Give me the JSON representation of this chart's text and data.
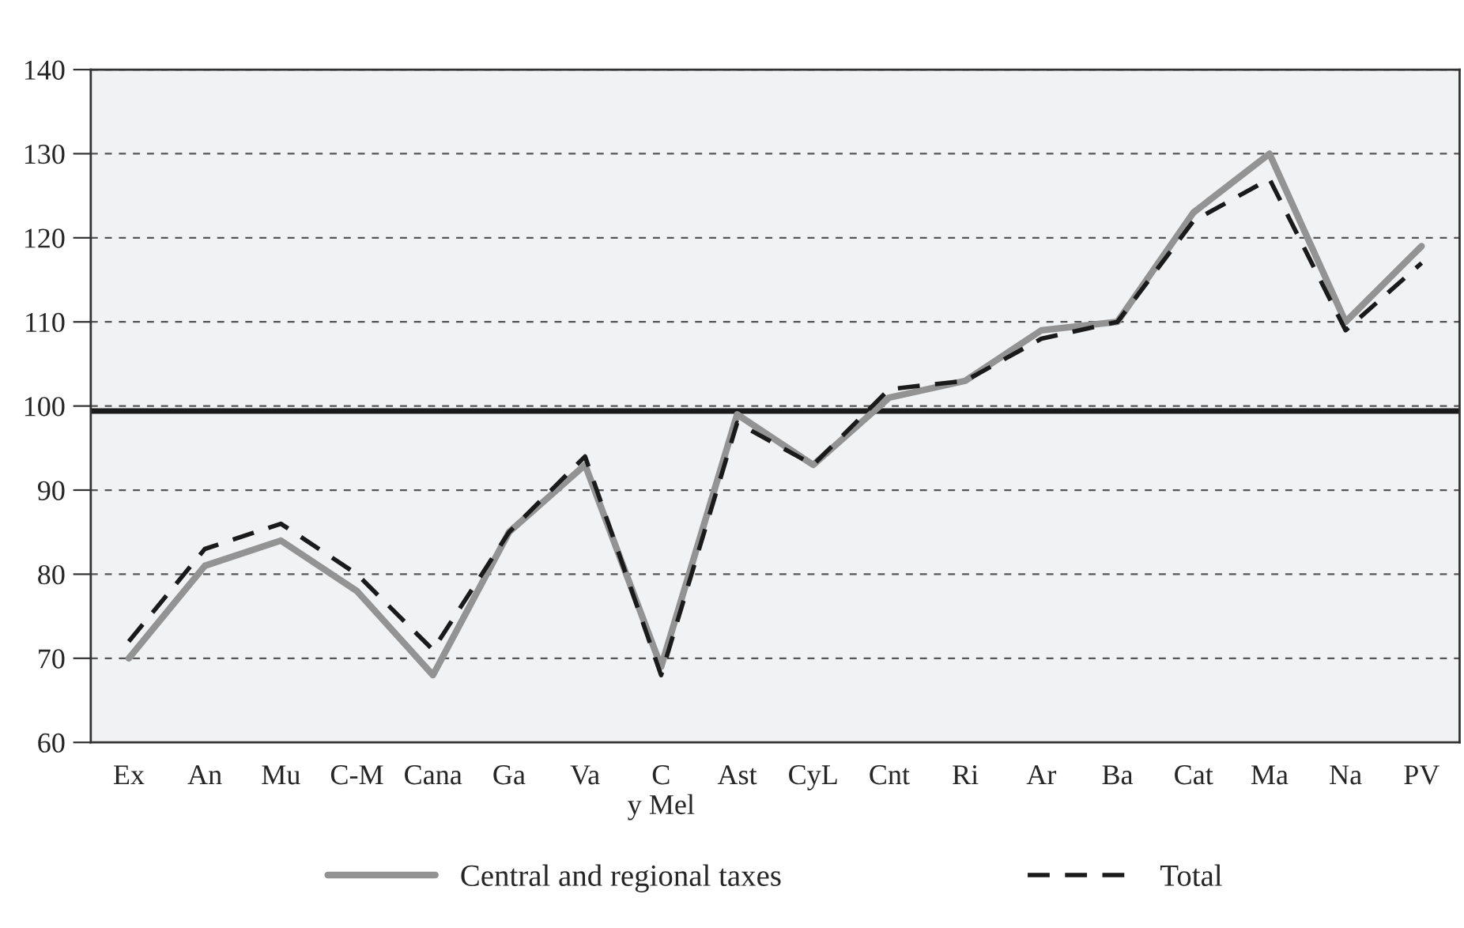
{
  "chart_data": {
    "type": "line",
    "categories": [
      "Ex",
      "An",
      "Mu",
      "C-M",
      "Cana",
      "Ga",
      "Va",
      "C\ny Mel",
      "Ast",
      "CyL",
      "Cnt",
      "Ri",
      "Ar",
      "Ba",
      "Cat",
      "Ma",
      "Na",
      "PV"
    ],
    "series": [
      {
        "name": "Central and regional taxes",
        "color": "#939393",
        "line_style": "solid",
        "values": [
          70,
          81,
          84,
          78,
          68,
          85,
          93,
          69,
          99,
          93,
          101,
          103,
          109,
          110,
          123,
          130,
          110,
          119
        ]
      },
      {
        "name": "Total",
        "color": "#1a1a1a",
        "line_style": "dashed",
        "values": [
          72,
          83,
          86,
          80,
          71,
          85,
          94,
          68,
          98,
          93,
          102,
          103,
          108,
          110,
          122,
          127,
          109,
          117
        ]
      }
    ],
    "ylim": [
      60,
      140
    ],
    "yticks": [
      60,
      70,
      80,
      90,
      100,
      110,
      120,
      130,
      140
    ],
    "ref_lines": [
      {
        "axis": "y",
        "value": 99.4,
        "color": "#1a1a1a",
        "line_style": "solid"
      }
    ],
    "grid": "y",
    "legend": "bottom",
    "marker": "none"
  }
}
